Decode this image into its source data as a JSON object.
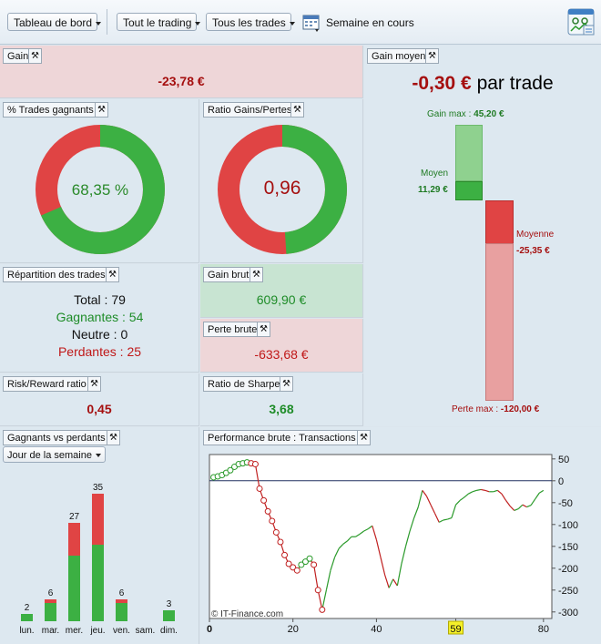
{
  "toolbar": {
    "dashboard_label": "Tableau de bord",
    "trading_label": "Tout le trading",
    "trades_label": "Tous les trades",
    "period_label": "Semaine en cours"
  },
  "gain": {
    "title": "Gain",
    "value": "-23,78 €"
  },
  "gain_moyen": {
    "title": "Gain moyen",
    "headline_value": "-0,30 €",
    "headline_suffix": "par trade",
    "gain_max_label": "Gain max :",
    "gain_max_value": "45,20 €",
    "moyen_label": "Moyen",
    "moyen_value": "11,29 €",
    "moyenne_label": "Moyenne",
    "moyenne_value": "-25,35 €",
    "perte_max_label": "Perte max :",
    "perte_max_value": "-120,00 €",
    "colors": {
      "green_light": "#8fd18f",
      "green": "#3cb043",
      "red": "#e04444",
      "red_light": "#e8a0a0"
    }
  },
  "trades_gagnants": {
    "title": "% Trades gagnants",
    "value": "68,35 %",
    "fraction": 0.6835
  },
  "ratio_gains_pertes": {
    "title": "Ratio Gains/Pertes",
    "value": "0,96",
    "fraction": 0.4898
  },
  "repartition": {
    "title": "Répartition des trades",
    "total_label": "Total :",
    "total_value": "79",
    "gagnantes_label": "Gagnantes :",
    "gagnantes_value": "54",
    "neutre_label": "Neutre :",
    "neutre_value": "0",
    "perdantes_label": "Perdantes :",
    "perdantes_value": "25"
  },
  "gain_brut": {
    "title": "Gain brut",
    "value": "609,90 €"
  },
  "perte_brute": {
    "title": "Perte brute",
    "value": "-633,68 €"
  },
  "risk_reward": {
    "title": "Risk/Reward ratio",
    "value": "0,45"
  },
  "sharpe": {
    "title": "Ratio de Sharpe",
    "value": "3,68"
  },
  "gagnants_vs_perdants": {
    "title": "Gagnants vs perdants",
    "selector": "Jour de la semaine",
    "chart_data": {
      "type": "bar",
      "categories": [
        "lun.",
        "mar.",
        "mer.",
        "jeu.",
        "ven.",
        "sam.",
        "dim."
      ],
      "totals": [
        "2",
        "6",
        "27",
        "35",
        "6",
        "",
        "3"
      ],
      "series": [
        {
          "name": "gagnants",
          "values": [
            2,
            5,
            18,
            21,
            5,
            0,
            3
          ]
        },
        {
          "name": "perdants",
          "values": [
            0,
            1,
            9,
            14,
            1,
            0,
            0
          ]
        }
      ]
    }
  },
  "performance": {
    "title": "Performance brute : Transactions",
    "watermark": "© IT-Finance.com",
    "chart_data": {
      "type": "line",
      "x_ticks": [
        "0",
        "20",
        "40",
        "59",
        "80"
      ],
      "y_ticks": [
        "50",
        "0",
        "-50",
        "-100",
        "-150",
        "-200",
        "-250",
        "-300"
      ],
      "xlim": [
        0,
        82
      ],
      "ylim": [
        -315,
        60
      ],
      "highlighted_x": "59",
      "points": [
        [
          1,
          8
        ],
        [
          2,
          10
        ],
        [
          3,
          13
        ],
        [
          4,
          18
        ],
        [
          5,
          24
        ],
        [
          6,
          32
        ],
        [
          7,
          38
        ],
        [
          8,
          40
        ],
        [
          9,
          42
        ],
        [
          10,
          40
        ],
        [
          11,
          38
        ],
        [
          12,
          -18
        ],
        [
          13,
          -45
        ],
        [
          14,
          -70
        ],
        [
          15,
          -92
        ],
        [
          16,
          -118
        ],
        [
          17,
          -140
        ],
        [
          18,
          -170
        ],
        [
          19,
          -190
        ],
        [
          20,
          -198
        ],
        [
          21,
          -205
        ],
        [
          22,
          -192
        ],
        [
          23,
          -185
        ],
        [
          24,
          -178
        ],
        [
          25,
          -192
        ],
        [
          26,
          -250
        ],
        [
          27,
          -295
        ],
        [
          28,
          -250
        ],
        [
          29,
          -205
        ],
        [
          30,
          -175
        ],
        [
          31,
          -155
        ],
        [
          32,
          -145
        ],
        [
          33,
          -138
        ],
        [
          34,
          -128
        ],
        [
          35,
          -128
        ],
        [
          36,
          -122
        ],
        [
          37,
          -115
        ],
        [
          38,
          -110
        ],
        [
          39,
          -103
        ],
        [
          40,
          -135
        ],
        [
          41,
          -175
        ],
        [
          42,
          -215
        ],
        [
          43,
          -245
        ],
        [
          44,
          -225
        ],
        [
          45,
          -240
        ],
        [
          46,
          -190
        ],
        [
          47,
          -150
        ],
        [
          48,
          -115
        ],
        [
          49,
          -85
        ],
        [
          50,
          -60
        ],
        [
          51,
          -22
        ],
        [
          52,
          -35
        ],
        [
          53,
          -55
        ],
        [
          54,
          -75
        ],
        [
          55,
          -95
        ],
        [
          56,
          -90
        ],
        [
          57,
          -88
        ],
        [
          58,
          -85
        ],
        [
          59,
          -55
        ],
        [
          60,
          -45
        ],
        [
          61,
          -38
        ],
        [
          62,
          -30
        ],
        [
          63,
          -25
        ],
        [
          64,
          -22
        ],
        [
          65,
          -20
        ],
        [
          66,
          -22
        ],
        [
          67,
          -25
        ],
        [
          68,
          -25
        ],
        [
          69,
          -22
        ],
        [
          70,
          -30
        ],
        [
          71,
          -45
        ],
        [
          72,
          -58
        ],
        [
          73,
          -68
        ],
        [
          74,
          -64
        ],
        [
          75,
          -55
        ],
        [
          76,
          -60
        ],
        [
          77,
          -56
        ],
        [
          78,
          -42
        ],
        [
          79,
          -28
        ],
        [
          80,
          -22
        ]
      ]
    }
  }
}
